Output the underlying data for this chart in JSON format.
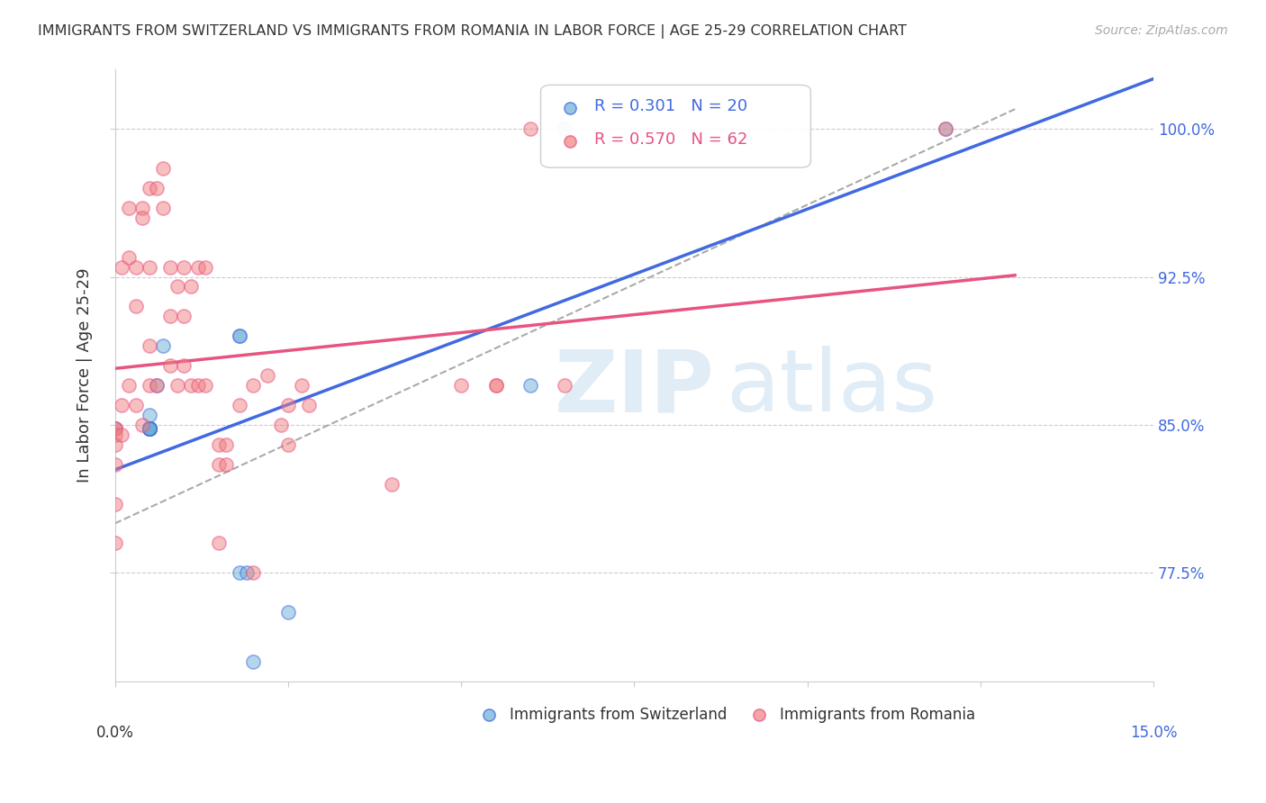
{
  "title": "IMMIGRANTS FROM SWITZERLAND VS IMMIGRANTS FROM ROMANIA IN LABOR FORCE | AGE 25-29 CORRELATION CHART",
  "source": "Source: ZipAtlas.com",
  "ylabel": "In Labor Force | Age 25-29",
  "ylabel_right_ticks": [
    "100.0%",
    "92.5%",
    "85.0%",
    "77.5%"
  ],
  "ylabel_right_values": [
    1.0,
    0.925,
    0.85,
    0.775
  ],
  "legend_blue_r": "R = 0.301",
  "legend_blue_n": "N = 20",
  "legend_pink_r": "R = 0.570",
  "legend_pink_n": "N = 62",
  "legend_blue_label": "Immigrants from Switzerland",
  "legend_pink_label": "Immigrants from Romania",
  "blue_color": "#6baed6",
  "pink_color": "#f08080",
  "blue_line_color": "#4169e1",
  "pink_line_color": "#e75480",
  "dashed_line_color": "#aaaaaa",
  "xlim": [
    0.0,
    0.15
  ],
  "ylim": [
    0.72,
    1.03
  ],
  "scatter_blue_x": [
    0.025,
    0.0,
    0.005,
    0.005,
    0.005,
    0.005,
    0.005,
    0.005,
    0.005,
    0.005,
    0.006,
    0.007,
    0.018,
    0.018,
    0.018,
    0.019,
    0.02,
    0.06,
    0.065,
    0.12
  ],
  "scatter_blue_y": [
    0.755,
    0.848,
    0.848,
    0.848,
    0.848,
    0.848,
    0.848,
    0.848,
    0.848,
    0.855,
    0.87,
    0.89,
    0.895,
    0.895,
    0.775,
    0.775,
    0.73,
    0.87,
    1.0,
    1.0
  ],
  "scatter_pink_x": [
    0.0,
    0.0,
    0.0,
    0.0,
    0.0,
    0.0,
    0.0,
    0.001,
    0.001,
    0.001,
    0.002,
    0.002,
    0.002,
    0.003,
    0.003,
    0.003,
    0.004,
    0.004,
    0.004,
    0.005,
    0.005,
    0.005,
    0.005,
    0.006,
    0.006,
    0.007,
    0.007,
    0.008,
    0.008,
    0.008,
    0.009,
    0.009,
    0.01,
    0.01,
    0.01,
    0.011,
    0.011,
    0.012,
    0.012,
    0.013,
    0.013,
    0.015,
    0.015,
    0.015,
    0.016,
    0.016,
    0.018,
    0.02,
    0.02,
    0.022,
    0.024,
    0.025,
    0.025,
    0.027,
    0.028,
    0.04,
    0.05,
    0.055,
    0.055,
    0.06,
    0.065,
    0.12
  ],
  "scatter_pink_y": [
    0.848,
    0.848,
    0.845,
    0.84,
    0.83,
    0.81,
    0.79,
    0.93,
    0.86,
    0.845,
    0.96,
    0.935,
    0.87,
    0.93,
    0.91,
    0.86,
    0.96,
    0.955,
    0.85,
    0.97,
    0.93,
    0.89,
    0.87,
    0.97,
    0.87,
    0.98,
    0.96,
    0.93,
    0.905,
    0.88,
    0.92,
    0.87,
    0.93,
    0.905,
    0.88,
    0.92,
    0.87,
    0.93,
    0.87,
    0.93,
    0.87,
    0.84,
    0.83,
    0.79,
    0.84,
    0.83,
    0.86,
    0.775,
    0.87,
    0.875,
    0.85,
    0.86,
    0.84,
    0.87,
    0.86,
    0.82,
    0.87,
    0.87,
    0.87,
    1.0,
    0.87,
    1.0
  ]
}
